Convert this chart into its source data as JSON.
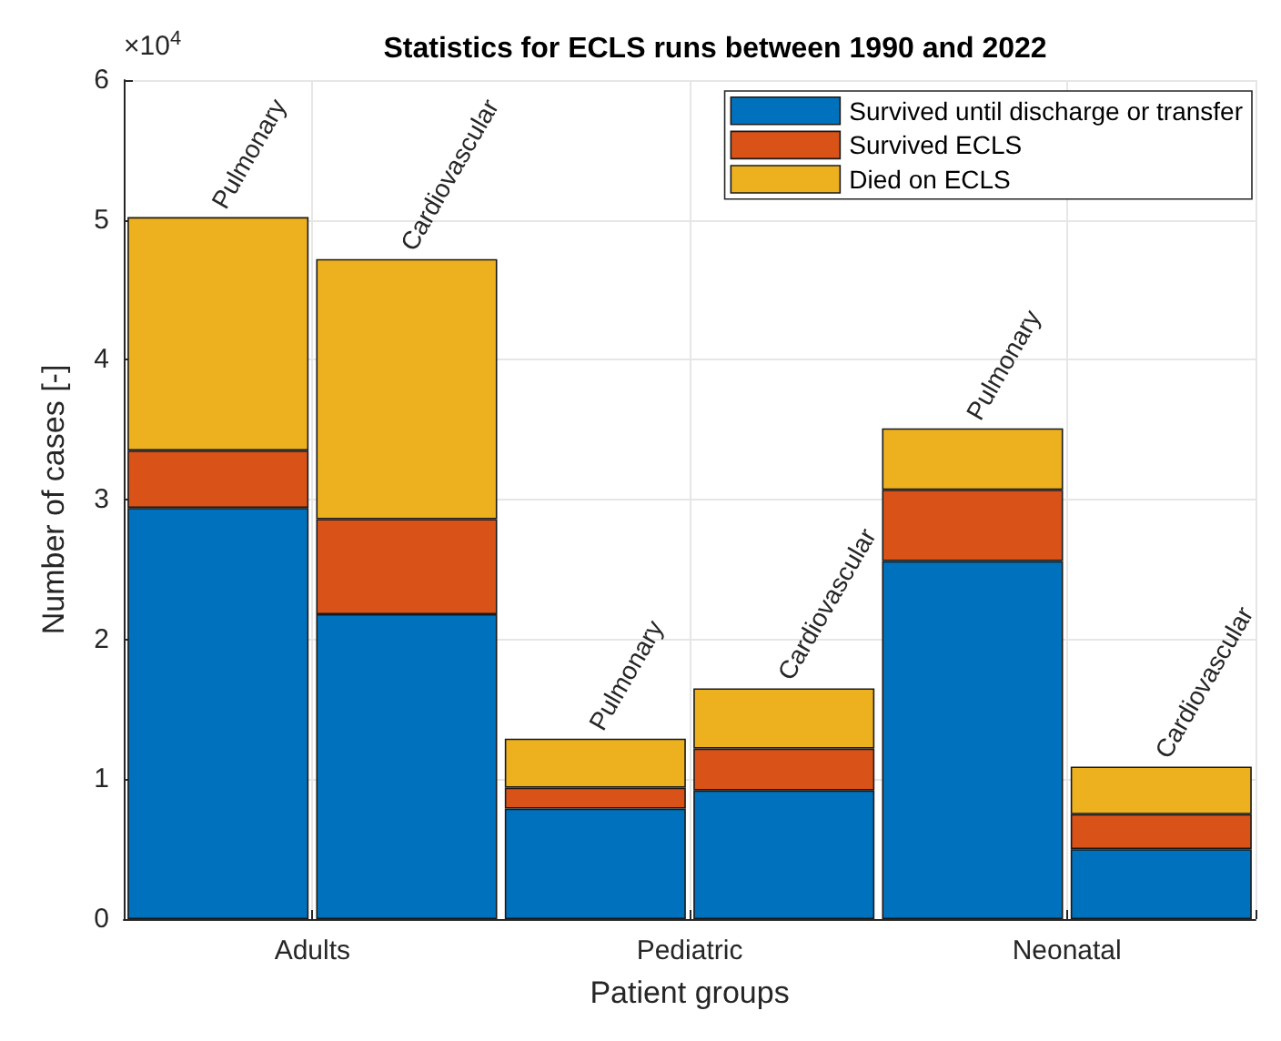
{
  "chart_data": {
    "type": "bar",
    "title": "Statistics for ECLS runs between 1990 and 2022",
    "xlabel": "Patient groups",
    "ylabel": "Number of cases [-]",
    "categories": [
      null,
      null,
      null,
      null,
      null,
      null
    ],
    "annotations": [
      "×10$^{4}$",
      "Adults",
      "Pediatric",
      "Neonatal"
    ],
    "stacked": true,
    "series": [
      {
        "name": "Survived until discharge or transfer",
        "color": "#0072bd",
        "values": [
          2.94,
          2.18,
          0.79,
          0.92,
          2.56,
          0.5
        ]
      },
      {
        "name": "Survived ECLS",
        "color": "#d95319",
        "values": [
          0.41,
          0.68,
          0.15,
          0.3,
          0.51,
          0.25
        ]
      },
      {
        "name": "Died on ECLS",
        "color": "#edb120",
        "values": [
          1.67,
          1.86,
          0.35,
          0.43,
          0.44,
          0.34
        ],
        "value_labels": [
          "Pulmonary",
          "Cardiovascular",
          "Pulmonary",
          "Cardiovascular",
          "Pulmonary",
          "Cardiovascular"
        ]
      }
    ],
    "ylim": [
      0,
      6
    ],
    "yticks": [
      0,
      1,
      2,
      3,
      4,
      5,
      6
    ],
    "grid": true,
    "legend": "top right"
  }
}
